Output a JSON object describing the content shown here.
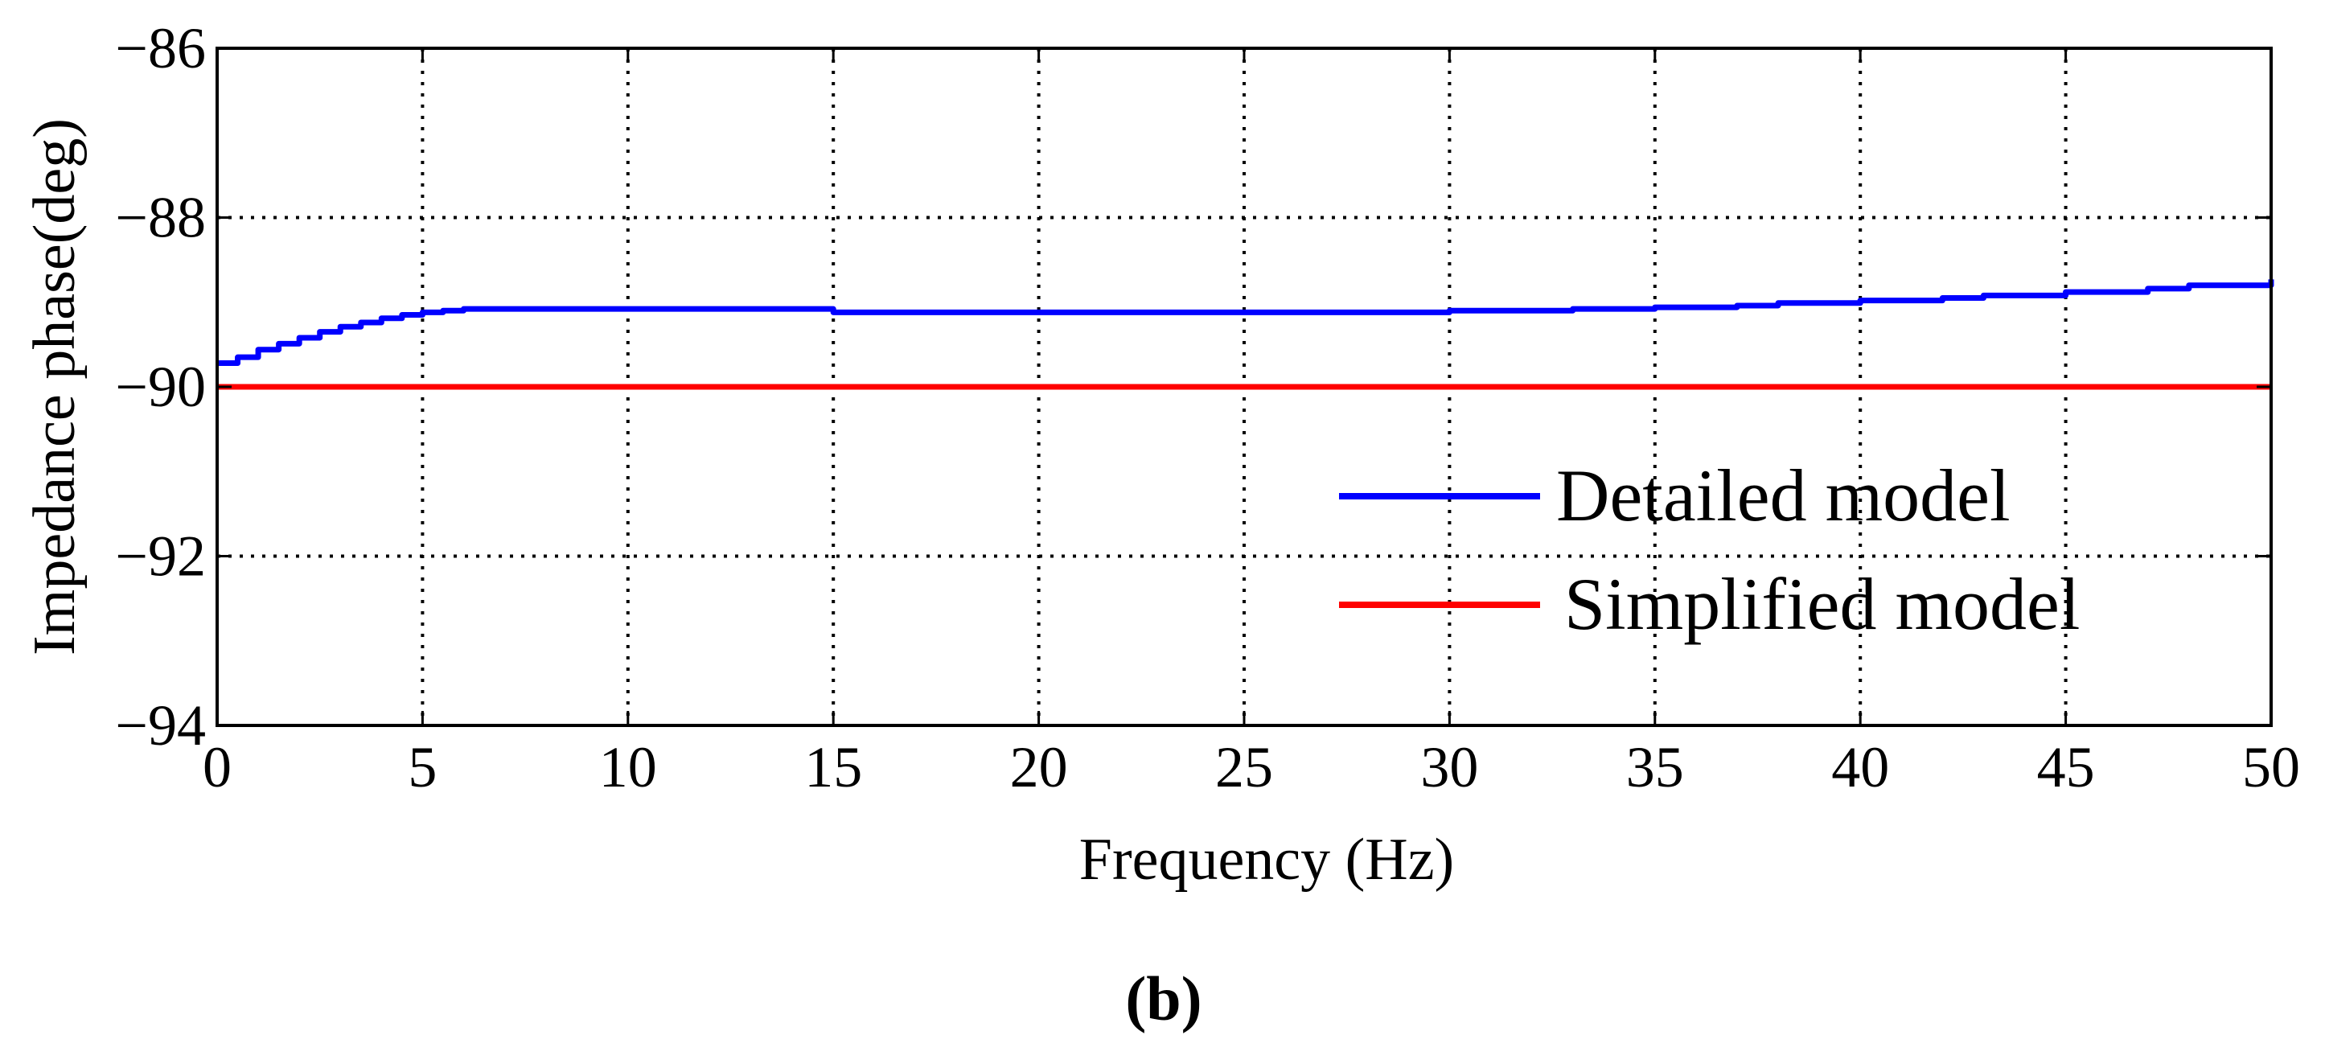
{
  "chart_data": {
    "type": "line",
    "title": "",
    "xlabel": "Frequency (Hz)",
    "ylabel": "Impedance phase(deg)",
    "xlim": [
      0,
      50
    ],
    "ylim": [
      -94,
      -86
    ],
    "xticks": [
      0,
      5,
      10,
      15,
      20,
      25,
      30,
      35,
      40,
      45,
      50
    ],
    "yticks": [
      -94,
      -92,
      -90,
      -88,
      -86
    ],
    "xtick_labels": [
      "0",
      "5",
      "10",
      "15",
      "20",
      "25",
      "30",
      "35",
      "40",
      "45",
      "50"
    ],
    "ytick_labels": [
      "−94",
      "−92",
      "−90",
      "−88",
      "−86"
    ],
    "grid": true,
    "legend_position": "lower-right",
    "series": [
      {
        "name": "Detailed model",
        "color": "#0000ff",
        "x": [
          0,
          0.5,
          1,
          1.5,
          2,
          2.5,
          3,
          3.5,
          4,
          4.5,
          5,
          5.5,
          6,
          8,
          10,
          12,
          15,
          18,
          20,
          22,
          25,
          27,
          29,
          30,
          32,
          33,
          35,
          37,
          38,
          40,
          42,
          43,
          45,
          47,
          48,
          50
        ],
        "y": [
          -89.72,
          -89.65,
          -89.56,
          -89.49,
          -89.42,
          -89.35,
          -89.29,
          -89.24,
          -89.19,
          -89.15,
          -89.12,
          -89.1,
          -89.08,
          -89.08,
          -89.08,
          -89.08,
          -89.12,
          -89.12,
          -89.12,
          -89.12,
          -89.12,
          -89.12,
          -89.12,
          -89.1,
          -89.1,
          -89.08,
          -89.06,
          -89.04,
          -89.01,
          -88.98,
          -88.95,
          -88.92,
          -88.88,
          -88.84,
          -88.8,
          -88.73
        ]
      },
      {
        "name": "Simplified model",
        "color": "#ff0000",
        "x": [
          0,
          50
        ],
        "y": [
          -90,
          -90
        ]
      }
    ],
    "caption": "(b)"
  }
}
